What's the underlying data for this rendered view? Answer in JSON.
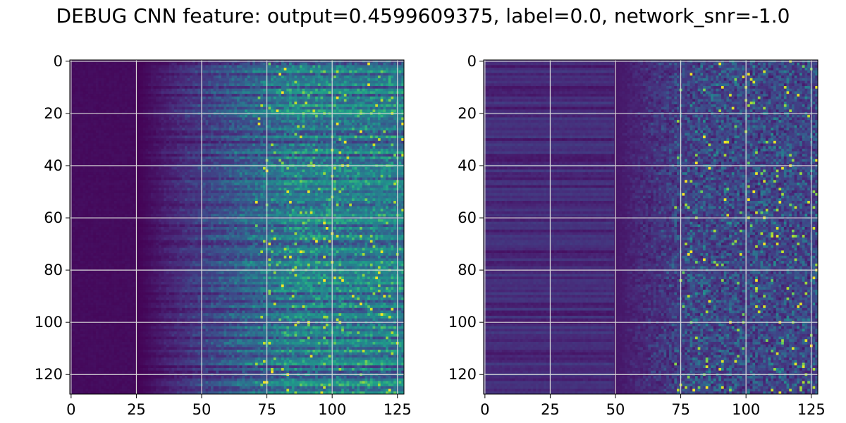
{
  "title": "DEBUG CNN feature: output=0.4599609375, label=0.0, network_snr=-1.0",
  "colors": {
    "colormap": [
      "#440154",
      "#482878",
      "#3e4989",
      "#31688e",
      "#26828e",
      "#1f9e89",
      "#35b779",
      "#6ece58",
      "#b5de2b",
      "#fde725"
    ],
    "grid": "#d9d9d9",
    "axes": "#000000"
  },
  "chart_data": [
    {
      "type": "heatmap",
      "title": "",
      "xlabel": "",
      "ylabel": "",
      "xlim": [
        0,
        127
      ],
      "ylim": [
        127,
        0
      ],
      "xticks": [
        0,
        25,
        50,
        75,
        100,
        125
      ],
      "yticks": [
        0,
        20,
        40,
        60,
        80,
        100,
        120
      ],
      "xtick_labels": [
        "0",
        "25",
        "50",
        "75",
        "100",
        "125"
      ],
      "ytick_labels": [
        "0",
        "20",
        "40",
        "60",
        "80",
        "100",
        "120"
      ],
      "grid": true,
      "colormap": "viridis",
      "matrix_shape": [
        128,
        128
      ],
      "description_of_values": "Low intensity (near 0) for columns 0-25; gradual increase columns 25-70; highest, noisy intensity columns 70-127 with horizontal streaks."
    },
    {
      "type": "heatmap",
      "title": "",
      "xlabel": "",
      "ylabel": "",
      "xlim": [
        0,
        127
      ],
      "ylim": [
        127,
        0
      ],
      "xticks": [
        0,
        25,
        50,
        75,
        100,
        125
      ],
      "yticks": [
        0,
        20,
        40,
        60,
        80,
        100,
        120
      ],
      "xtick_labels": [
        "0",
        "25",
        "50",
        "75",
        "100",
        "125"
      ],
      "ytick_labels": [
        "0",
        "20",
        "40",
        "60",
        "80",
        "100",
        "120"
      ],
      "grid": true,
      "colormap": "viridis",
      "matrix_shape": [
        128,
        128
      ],
      "description_of_values": "Horizontal banding for columns 0-50 with low values; noisy speckled values columns 50-127, brightest scattered pixels around columns 75-127."
    }
  ]
}
